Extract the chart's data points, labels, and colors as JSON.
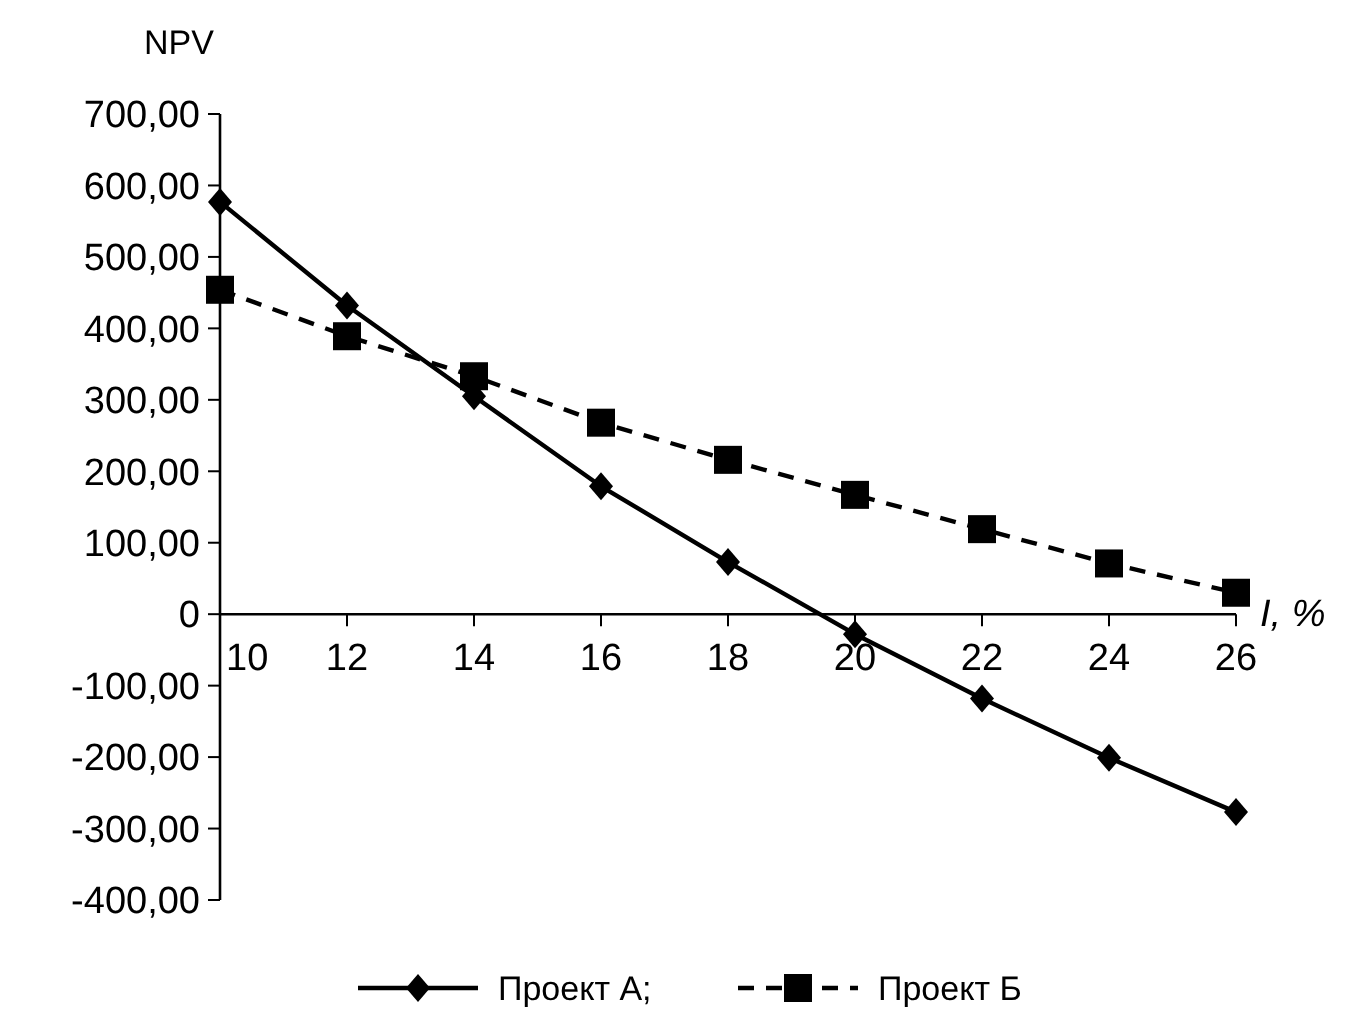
{
  "chart_data": {
    "type": "line",
    "ylabel": "NPV",
    "xlabel": "I, %",
    "categories": [
      "10",
      "12",
      "14",
      "16",
      "18",
      "20",
      "22",
      "24",
      "26"
    ],
    "ylim": [
      -400,
      700
    ],
    "yticks": [
      {
        "value": -400,
        "label": "-400,00"
      },
      {
        "value": -300,
        "label": "-300,00"
      },
      {
        "value": -200,
        "label": "-200,00"
      },
      {
        "value": -100,
        "label": "-100,00"
      },
      0,
      {
        "value": 100,
        "label": "100,00"
      },
      {
        "value": 200,
        "label": "200,00"
      },
      {
        "value": 300,
        "label": "300,00"
      },
      {
        "value": 400,
        "label": "400,00"
      },
      {
        "value": 500,
        "label": "500,00"
      },
      {
        "value": 600,
        "label": "600,00"
      },
      {
        "value": 700,
        "label": "700,00"
      }
    ],
    "series": [
      {
        "name": "Проект А;",
        "color": "#000000",
        "marker": "diamond",
        "line_style": "solid",
        "values": [
          577,
          432,
          305,
          179,
          73,
          -28,
          -118,
          -201,
          -277
        ]
      },
      {
        "name": "Проект Б",
        "color": "#000000",
        "marker": "square",
        "line_style": "dashed",
        "values": [
          454,
          389,
          333,
          268,
          216,
          167,
          119,
          71,
          30
        ]
      }
    ],
    "legend": "bottom",
    "grid": false
  }
}
